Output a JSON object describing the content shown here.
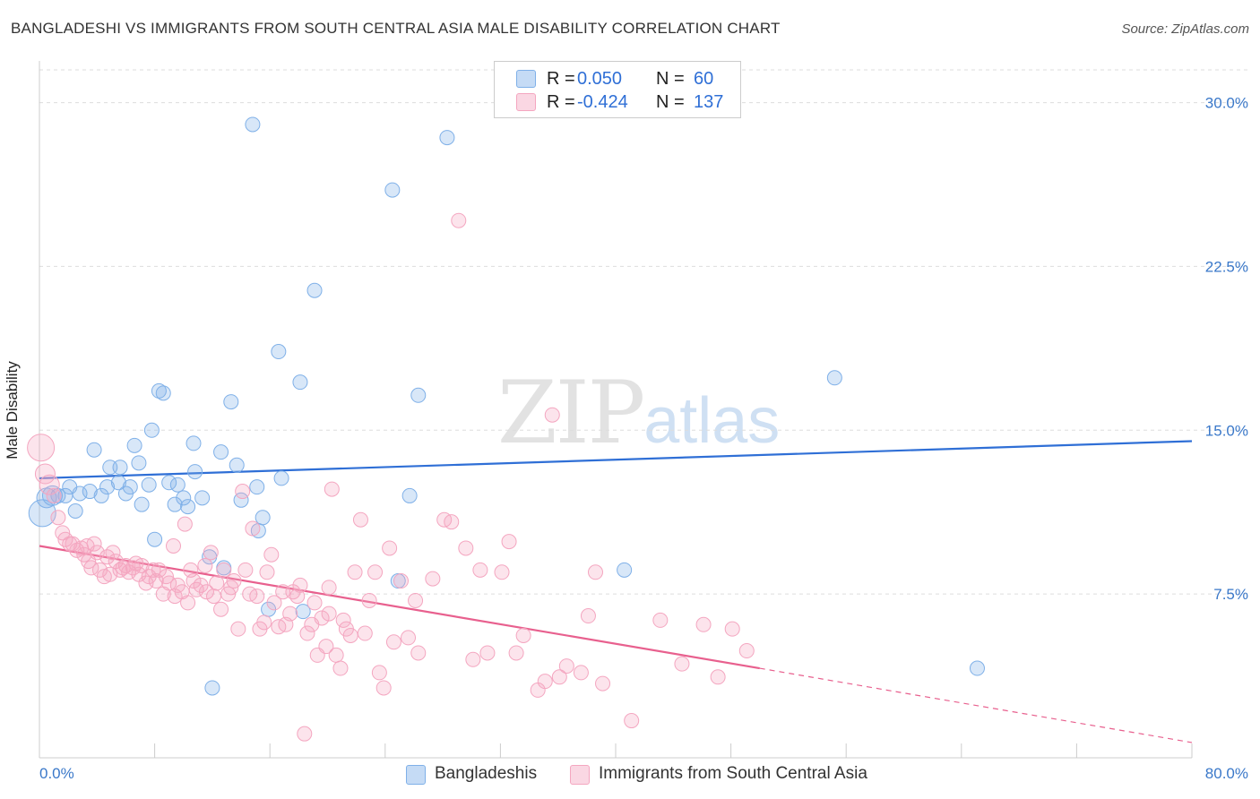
{
  "header": {
    "title": "BANGLADESHI VS IMMIGRANTS FROM SOUTH CENTRAL ASIA MALE DISABILITY CORRELATION CHART",
    "source": "Source: ZipAtlas.com"
  },
  "watermark": {
    "zip": "ZIP",
    "atlas": "atlas"
  },
  "legend_top": {
    "rows": [
      {
        "r_label": "R =",
        "r_value": "0.050",
        "n_label": "N =",
        "n_value": "60",
        "color": "#7fb0e8"
      },
      {
        "r_label": "R =",
        "r_value": "-0.424",
        "n_label": "N =",
        "n_value": "137",
        "color": "#f4a6c0"
      }
    ]
  },
  "legend_bottom": {
    "items": [
      {
        "label": "Bangladeshis",
        "color": "#7fb0e8"
      },
      {
        "label": "Immigrants from South Central Asia",
        "color": "#f4a6c0"
      }
    ]
  },
  "chart_data": {
    "type": "scatter",
    "title": "BANGLADESHI VS IMMIGRANTS FROM SOUTH CENTRAL ASIA MALE DISABILITY CORRELATION CHART",
    "xlabel": "",
    "ylabel": "Male Disability",
    "xlim": [
      0,
      80
    ],
    "ylim": [
      0,
      31.5
    ],
    "x_tick_labels": [
      "0.0%",
      "80.0%"
    ],
    "y_ticks": [
      7.5,
      15.0,
      22.5,
      30.0
    ],
    "y_tick_labels": [
      "7.5%",
      "15.0%",
      "22.5%",
      "30.0%"
    ],
    "grid": true,
    "legend_position": "top-center",
    "series": [
      {
        "name": "Bangladeshis",
        "color": "#7fb0e8",
        "line_color": "#2f6fd6",
        "trend": {
          "x0": 0,
          "y0": 12.8,
          "x1": 80,
          "y1": 14.5
        },
        "points": [
          [
            0.2,
            11.2
          ],
          [
            0.5,
            11.9
          ],
          [
            0.9,
            12.0
          ],
          [
            1.3,
            12.0
          ],
          [
            1.8,
            12.0
          ],
          [
            2.1,
            12.4
          ],
          [
            2.8,
            12.1
          ],
          [
            3.5,
            12.2
          ],
          [
            2.5,
            11.3
          ],
          [
            3.8,
            14.1
          ],
          [
            4.3,
            12.0
          ],
          [
            4.7,
            12.4
          ],
          [
            4.9,
            13.3
          ],
          [
            5.5,
            12.6
          ],
          [
            5.6,
            13.3
          ],
          [
            6.0,
            12.1
          ],
          [
            6.3,
            12.4
          ],
          [
            6.6,
            14.3
          ],
          [
            6.9,
            13.5
          ],
          [
            7.1,
            11.6
          ],
          [
            7.6,
            12.5
          ],
          [
            7.8,
            15.0
          ],
          [
            8.0,
            10.0
          ],
          [
            8.3,
            16.8
          ],
          [
            8.6,
            16.7
          ],
          [
            9.0,
            12.6
          ],
          [
            9.4,
            11.6
          ],
          [
            9.6,
            12.5
          ],
          [
            10.0,
            11.9
          ],
          [
            10.3,
            11.5
          ],
          [
            10.7,
            14.4
          ],
          [
            10.8,
            13.1
          ],
          [
            11.3,
            11.9
          ],
          [
            11.8,
            9.2
          ],
          [
            12.0,
            3.2
          ],
          [
            12.6,
            14.0
          ],
          [
            12.8,
            8.7
          ],
          [
            13.3,
            16.3
          ],
          [
            13.7,
            13.4
          ],
          [
            14.0,
            11.8
          ],
          [
            14.8,
            29.0
          ],
          [
            15.1,
            12.4
          ],
          [
            15.5,
            11.0
          ],
          [
            15.2,
            10.4
          ],
          [
            15.9,
            6.8
          ],
          [
            16.6,
            18.6
          ],
          [
            16.8,
            12.8
          ],
          [
            18.1,
            17.2
          ],
          [
            18.3,
            6.7
          ],
          [
            19.1,
            21.4
          ],
          [
            24.5,
            26.0
          ],
          [
            24.9,
            8.1
          ],
          [
            25.7,
            12.0
          ],
          [
            26.3,
            16.6
          ],
          [
            28.3,
            28.4
          ],
          [
            40.6,
            8.6
          ],
          [
            55.2,
            17.4
          ],
          [
            65.1,
            4.1
          ]
        ]
      },
      {
        "name": "Immigrants from South Central Asia",
        "color": "#f4a6c0",
        "line_color": "#e8608e",
        "trend": {
          "x0": 0,
          "y0": 9.7,
          "x1": 50,
          "y1": 4.1
        },
        "trend_dashed": {
          "x0": 50,
          "y0": 4.1,
          "x1": 80,
          "y1": 0.7
        },
        "points": [
          [
            0.1,
            14.2
          ],
          [
            0.4,
            13.0
          ],
          [
            0.7,
            12.5
          ],
          [
            1.0,
            12.0
          ],
          [
            1.3,
            11.0
          ],
          [
            1.6,
            10.3
          ],
          [
            1.8,
            10.0
          ],
          [
            2.1,
            9.8
          ],
          [
            2.3,
            9.8
          ],
          [
            2.6,
            9.5
          ],
          [
            2.9,
            9.6
          ],
          [
            3.1,
            9.3
          ],
          [
            3.3,
            9.7
          ],
          [
            3.4,
            9.0
          ],
          [
            3.6,
            8.7
          ],
          [
            3.8,
            9.8
          ],
          [
            4.0,
            9.4
          ],
          [
            4.2,
            8.6
          ],
          [
            4.5,
            8.3
          ],
          [
            4.7,
            9.2
          ],
          [
            4.9,
            8.4
          ],
          [
            5.1,
            9.4
          ],
          [
            5.3,
            9.0
          ],
          [
            5.6,
            8.6
          ],
          [
            5.8,
            8.7
          ],
          [
            6.0,
            8.8
          ],
          [
            6.2,
            8.5
          ],
          [
            6.5,
            8.7
          ],
          [
            6.7,
            8.9
          ],
          [
            6.9,
            8.4
          ],
          [
            7.1,
            8.8
          ],
          [
            7.4,
            8.0
          ],
          [
            7.6,
            8.3
          ],
          [
            7.9,
            8.6
          ],
          [
            8.1,
            8.1
          ],
          [
            8.3,
            8.6
          ],
          [
            8.6,
            7.5
          ],
          [
            8.8,
            8.3
          ],
          [
            9.0,
            8.0
          ],
          [
            9.3,
            9.7
          ],
          [
            9.4,
            7.4
          ],
          [
            9.6,
            7.9
          ],
          [
            9.9,
            7.6
          ],
          [
            10.1,
            10.7
          ],
          [
            10.3,
            7.1
          ],
          [
            10.5,
            8.6
          ],
          [
            10.7,
            8.1
          ],
          [
            10.9,
            7.7
          ],
          [
            11.2,
            7.9
          ],
          [
            11.5,
            8.8
          ],
          [
            11.6,
            7.6
          ],
          [
            11.9,
            9.4
          ],
          [
            12.1,
            7.4
          ],
          [
            12.3,
            8.0
          ],
          [
            12.6,
            6.8
          ],
          [
            12.8,
            8.6
          ],
          [
            13.1,
            7.5
          ],
          [
            13.3,
            7.8
          ],
          [
            13.5,
            8.1
          ],
          [
            13.8,
            5.9
          ],
          [
            14.1,
            12.2
          ],
          [
            14.3,
            8.6
          ],
          [
            14.6,
            7.5
          ],
          [
            14.8,
            10.5
          ],
          [
            15.1,
            7.4
          ],
          [
            15.3,
            5.9
          ],
          [
            15.6,
            6.2
          ],
          [
            15.8,
            8.5
          ],
          [
            16.1,
            9.3
          ],
          [
            16.3,
            7.1
          ],
          [
            16.6,
            6.0
          ],
          [
            16.9,
            7.6
          ],
          [
            17.1,
            6.1
          ],
          [
            17.4,
            6.6
          ],
          [
            17.6,
            7.6
          ],
          [
            17.9,
            7.4
          ],
          [
            18.1,
            7.9
          ],
          [
            18.4,
            1.1
          ],
          [
            18.6,
            5.7
          ],
          [
            18.9,
            6.1
          ],
          [
            19.1,
            7.1
          ],
          [
            19.3,
            4.7
          ],
          [
            19.6,
            6.4
          ],
          [
            19.9,
            5.1
          ],
          [
            20.1,
            7.8
          ],
          [
            20.3,
            12.3
          ],
          [
            20.6,
            4.7
          ],
          [
            20.9,
            4.1
          ],
          [
            21.1,
            6.3
          ],
          [
            21.3,
            5.9
          ],
          [
            21.6,
            5.6
          ],
          [
            21.9,
            8.5
          ],
          [
            22.3,
            10.9
          ],
          [
            22.6,
            5.7
          ],
          [
            22.9,
            7.2
          ],
          [
            23.3,
            8.5
          ],
          [
            23.6,
            3.9
          ],
          [
            23.9,
            3.2
          ],
          [
            24.3,
            9.6
          ],
          [
            24.6,
            5.3
          ],
          [
            25.1,
            8.1
          ],
          [
            25.6,
            5.5
          ],
          [
            26.1,
            7.2
          ],
          [
            26.3,
            4.8
          ],
          [
            27.3,
            8.2
          ],
          [
            28.1,
            10.9
          ],
          [
            28.6,
            10.8
          ],
          [
            29.1,
            24.6
          ],
          [
            29.6,
            9.6
          ],
          [
            30.1,
            4.5
          ],
          [
            30.6,
            8.6
          ],
          [
            31.1,
            4.8
          ],
          [
            32.1,
            8.5
          ],
          [
            32.6,
            9.9
          ],
          [
            33.1,
            4.8
          ],
          [
            33.6,
            5.6
          ],
          [
            34.6,
            3.1
          ],
          [
            35.1,
            3.5
          ],
          [
            35.6,
            15.7
          ],
          [
            36.1,
            3.7
          ],
          [
            36.6,
            4.2
          ],
          [
            37.6,
            3.9
          ],
          [
            38.1,
            6.5
          ],
          [
            38.6,
            8.5
          ],
          [
            39.1,
            3.4
          ],
          [
            41.1,
            1.7
          ],
          [
            46.1,
            6.1
          ],
          [
            47.1,
            3.7
          ],
          [
            48.1,
            5.9
          ],
          [
            49.1,
            4.9
          ],
          [
            43.1,
            6.3
          ],
          [
            44.6,
            4.3
          ],
          [
            20.1,
            6.6
          ]
        ]
      }
    ]
  }
}
